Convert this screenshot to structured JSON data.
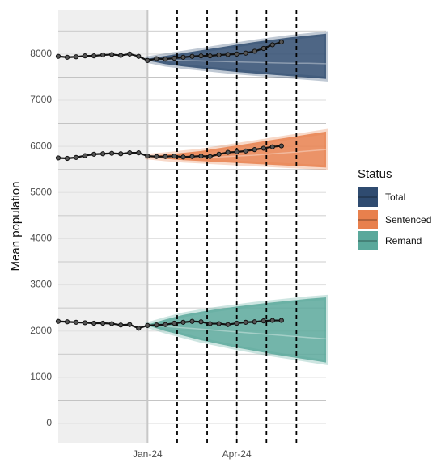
{
  "chart_data": {
    "type": "fan",
    "y_label": "Mean population",
    "legend_title": "Status",
    "legend_position": "right",
    "grid": true,
    "xlim": [
      2023.75,
      2024.5
    ],
    "xticks": [
      {
        "value": 2024.0,
        "label": "Jan-24"
      },
      {
        "value": 2024.25,
        "label": "Apr-24"
      }
    ],
    "ylim": [
      -420,
      8960
    ],
    "yticks": [
      0,
      1000,
      2000,
      3000,
      4000,
      5000,
      6000,
      7000,
      8000
    ],
    "y_minor_ticks": [
      500,
      1500,
      2500,
      3500,
      4500,
      5500,
      6500,
      7500,
      8500
    ],
    "history_end": 2024.0,
    "vlines": [
      2024.083,
      2024.167,
      2024.25,
      2024.333,
      2024.417
    ],
    "observed_color": "#111111",
    "observed_x": [
      2023.75,
      2023.775,
      2023.8,
      2023.825,
      2023.85,
      2023.875,
      2023.9,
      2023.925,
      2023.95,
      2023.975,
      2024.0,
      2024.025,
      2024.05,
      2024.075,
      2024.1,
      2024.125,
      2024.15,
      2024.175,
      2024.2,
      2024.225,
      2024.25,
      2024.275,
      2024.3,
      2024.325,
      2024.35,
      2024.375
    ],
    "forecast_x": [
      2024.0,
      2024.05,
      2024.1,
      2024.15,
      2024.2,
      2024.25,
      2024.3,
      2024.35,
      2024.4,
      2024.45,
      2024.5
    ],
    "series": [
      {
        "name": "Total",
        "color": "#2f4b70",
        "observed": [
          7950,
          7930,
          7940,
          7960,
          7960,
          7980,
          7990,
          7970,
          8000,
          7950,
          7860,
          7900,
          7890,
          7910,
          7930,
          7950,
          7960,
          7960,
          7980,
          7990,
          8000,
          8020,
          8060,
          8120,
          8200,
          8260
        ],
        "median": [
          7880,
          7870,
          7860,
          7850,
          7840,
          7830,
          7820,
          7810,
          7800,
          7800,
          7790
        ],
        "upper": [
          7900,
          7960,
          8020,
          8080,
          8140,
          8200,
          8260,
          8310,
          8360,
          8400,
          8440
        ],
        "lower": [
          7860,
          7780,
          7730,
          7690,
          7650,
          7610,
          7580,
          7550,
          7520,
          7490,
          7460
        ]
      },
      {
        "name": "Sentenced",
        "color": "#e8804d",
        "observed": [
          5750,
          5740,
          5760,
          5800,
          5830,
          5840,
          5850,
          5840,
          5860,
          5860,
          5790,
          5780,
          5780,
          5790,
          5770,
          5780,
          5790,
          5780,
          5830,
          5870,
          5880,
          5900,
          5930,
          5960,
          5990,
          6010
        ],
        "median": [
          5780,
          5770,
          5760,
          5760,
          5770,
          5790,
          5810,
          5840,
          5870,
          5900,
          5930
        ],
        "upper": [
          5790,
          5820,
          5860,
          5900,
          5960,
          6020,
          6080,
          6140,
          6200,
          6260,
          6320
        ],
        "lower": [
          5770,
          5730,
          5700,
          5680,
          5660,
          5640,
          5620,
          5600,
          5580,
          5560,
          5540
        ]
      },
      {
        "name": "Remand",
        "color": "#5aa89b",
        "observed": [
          2210,
          2200,
          2190,
          2180,
          2170,
          2170,
          2160,
          2130,
          2140,
          2060,
          2120,
          2130,
          2140,
          2170,
          2190,
          2210,
          2200,
          2160,
          2160,
          2140,
          2170,
          2190,
          2200,
          2220,
          2230,
          2230
        ],
        "median": [
          2130,
          2100,
          2070,
          2040,
          2010,
          1980,
          1950,
          1920,
          1890,
          1860,
          1830
        ],
        "upper": [
          2140,
          2250,
          2350,
          2420,
          2480,
          2530,
          2580,
          2620,
          2660,
          2700,
          2730
        ],
        "lower": [
          2120,
          2000,
          1900,
          1800,
          1720,
          1640,
          1570,
          1500,
          1440,
          1380,
          1320
        ]
      }
    ]
  }
}
